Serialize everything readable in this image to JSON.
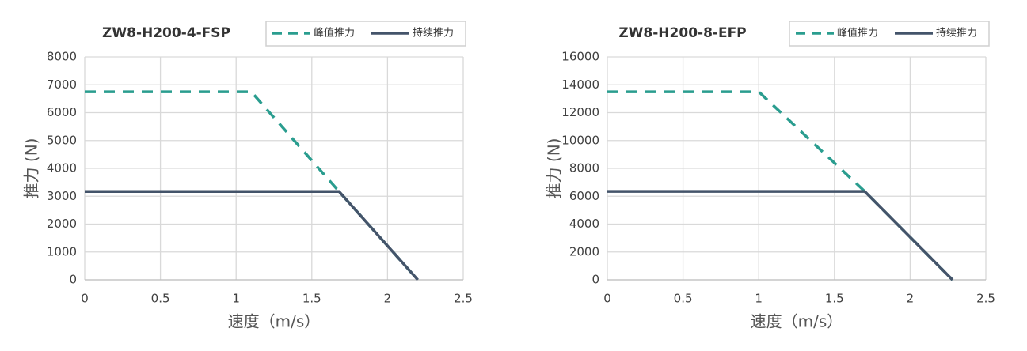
{
  "chart_data": [
    {
      "type": "line",
      "title": "ZW8-H200-4-FSP",
      "x_label": "速度（m/s）",
      "y_label": "推力 (N)",
      "xlim": [
        0,
        2.5
      ],
      "xticks": [
        0,
        0.5,
        1,
        1.5,
        2,
        2.5
      ],
      "ylim": [
        0,
        8000
      ],
      "yticks": [
        0,
        1000,
        2000,
        3000,
        4000,
        5000,
        6000,
        7000,
        8000
      ],
      "grid": true,
      "series": [
        {
          "name": "峰值推力",
          "color": "#2a9d8f",
          "dashed": true,
          "x": [
            0,
            1.1,
            1.68,
            2.2
          ],
          "values": [
            6750,
            6750,
            3170,
            0
          ]
        },
        {
          "name": "持续推力",
          "color": "#44546a",
          "dashed": false,
          "x": [
            0,
            1.68,
            2.2
          ],
          "values": [
            3170,
            3170,
            0
          ]
        }
      ]
    },
    {
      "type": "line",
      "title": "ZW8-H200-8-EFP",
      "x_label": "速度（m/s）",
      "y_label": "推力 (N)",
      "xlim": [
        0,
        2.5
      ],
      "xticks": [
        0,
        0.5,
        1,
        1.5,
        2,
        2.5
      ],
      "ylim": [
        0,
        16000
      ],
      "yticks": [
        0,
        2000,
        4000,
        6000,
        8000,
        10000,
        12000,
        14000,
        16000
      ],
      "grid": true,
      "series": [
        {
          "name": "峰值推力",
          "color": "#2a9d8f",
          "dashed": true,
          "x": [
            0,
            1,
            1.7,
            2.28
          ],
          "values": [
            13500,
            13500,
            6350,
            0
          ]
        },
        {
          "name": "持续推力",
          "color": "#44546a",
          "dashed": false,
          "x": [
            0,
            1.7,
            2.28
          ],
          "values": [
            6350,
            6350,
            0
          ]
        }
      ]
    }
  ]
}
